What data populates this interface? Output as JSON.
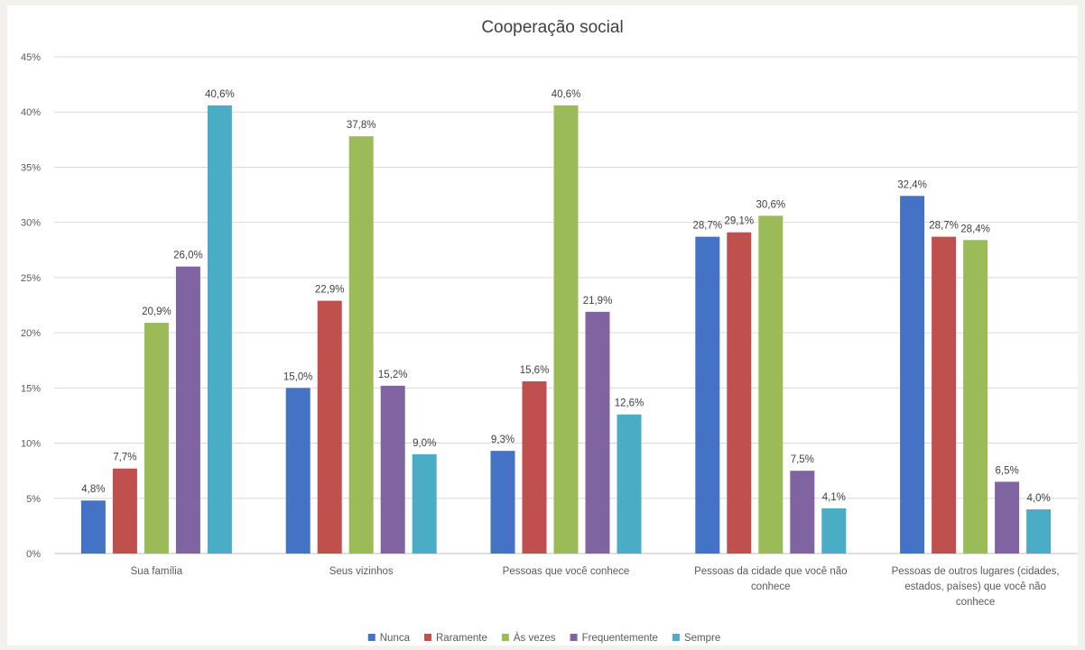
{
  "chart_data": {
    "type": "bar",
    "title": "Cooperação social",
    "xlabel": "",
    "ylabel": "",
    "ylim": [
      0,
      45
    ],
    "yticks": [
      "0%",
      "5%",
      "10%",
      "15%",
      "20%",
      "25%",
      "30%",
      "35%",
      "40%",
      "45%"
    ],
    "grid": true,
    "legend_position": "bottom",
    "categories": [
      [
        "Sua família"
      ],
      [
        "Seus vizinhos"
      ],
      [
        "Pessoas que você conhece"
      ],
      [
        "Pessoas da cidade que você não",
        "conhece"
      ],
      [
        "Pessoas de outros lugares (cidades,",
        "estados, países) que você não",
        "conhece"
      ]
    ],
    "series": [
      {
        "name": "Nunca",
        "color": "#4472c4",
        "values": [
          4.8,
          15.0,
          9.3,
          28.7,
          32.4
        ],
        "labels": [
          "4,8%",
          "15,0%",
          "9,3%",
          "28,7%",
          "32,4%"
        ]
      },
      {
        "name": "Raramente",
        "color": "#c0504d",
        "values": [
          7.7,
          22.9,
          15.6,
          29.1,
          28.7
        ],
        "labels": [
          "7,7%",
          "22,9%",
          "15,6%",
          "29,1%",
          "28,7%"
        ]
      },
      {
        "name": "Às vezes",
        "color": "#9bbb59",
        "values": [
          20.9,
          37.8,
          40.6,
          30.6,
          28.4
        ],
        "labels": [
          "20,9%",
          "37,8%",
          "40,6%",
          "30,6%",
          "28,4%"
        ]
      },
      {
        "name": "Frequentemente",
        "color": "#8064a2",
        "values": [
          26.0,
          15.2,
          21.9,
          7.5,
          6.5
        ],
        "labels": [
          "26,0%",
          "15,2%",
          "21,9%",
          "7,5%",
          "6,5%"
        ]
      },
      {
        "name": "Sempre",
        "color": "#4bacc6",
        "values": [
          40.6,
          9.0,
          12.6,
          4.1,
          4.0
        ],
        "labels": [
          "40,6%",
          "9,0%",
          "12,6%",
          "4,1%",
          "4,0%"
        ]
      }
    ]
  }
}
